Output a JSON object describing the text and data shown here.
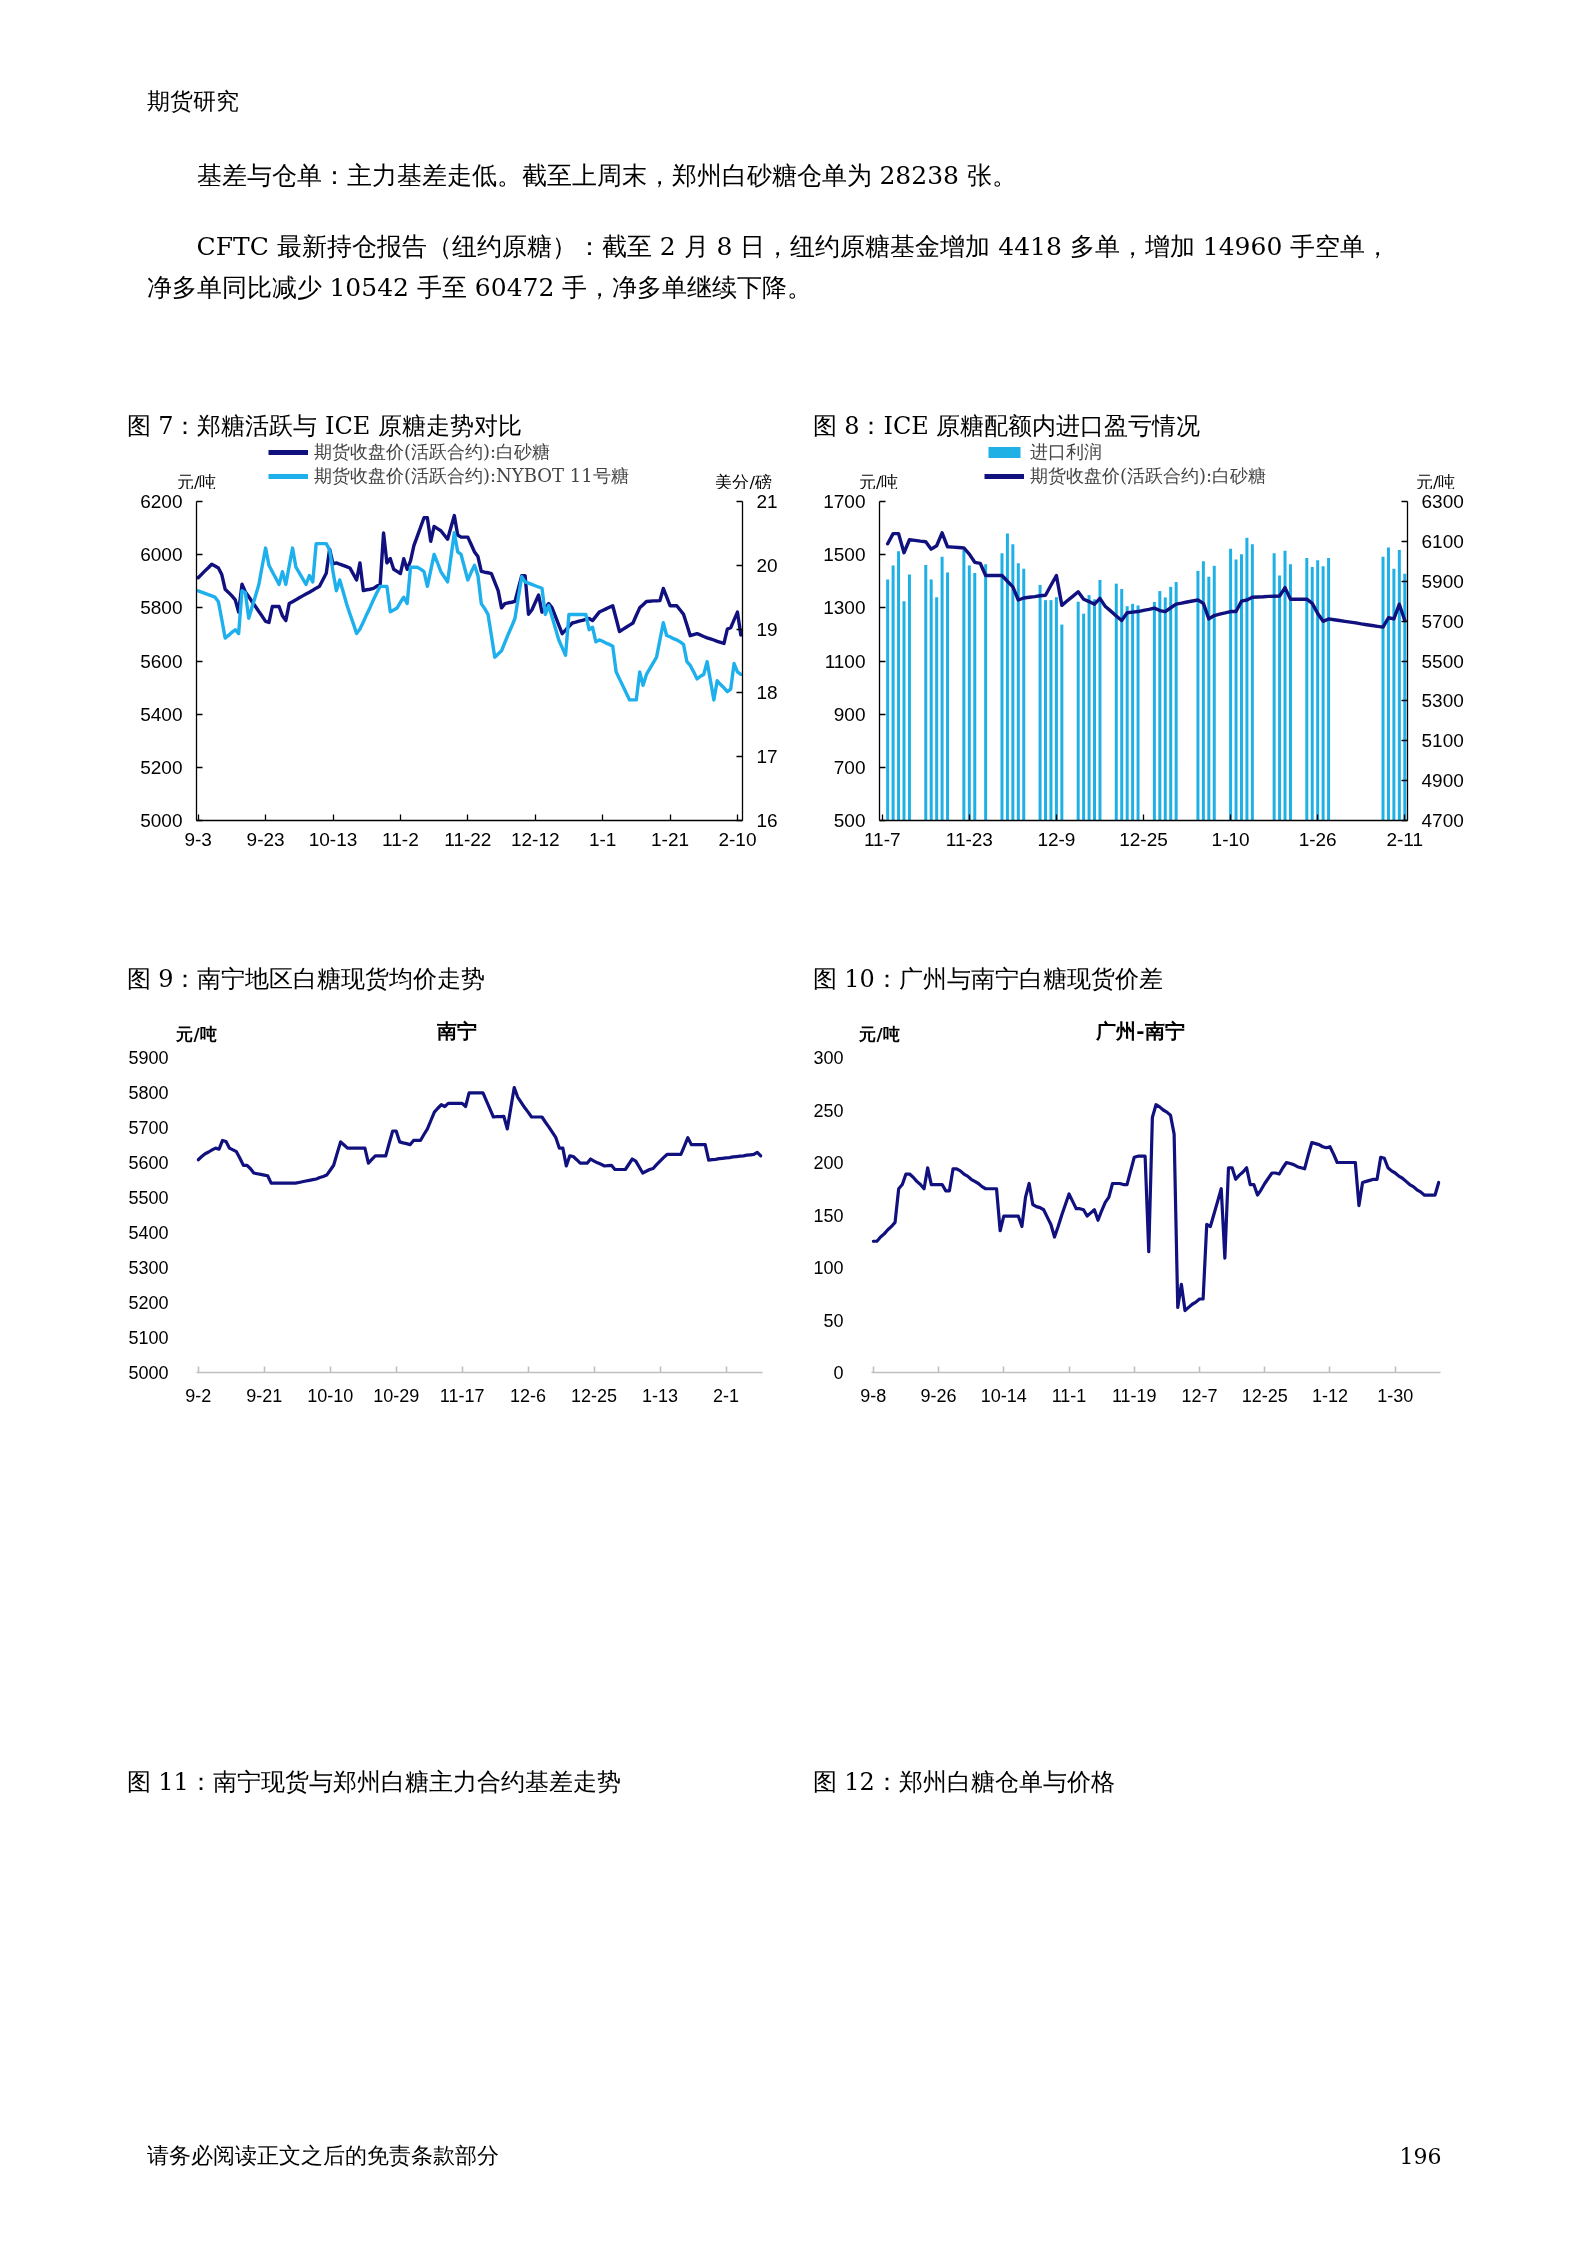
{
  "chart_data": [
    {
      "type": "other",
      "title": "期货研究",
      "annotations": [
        "基差与仓单：主力基差走低。截至上周末，郑州白砂糖仓单为 28238 张。",
        "CFTC 最新持仓报告（纽约原糖）：截至 2 月 8 日，纽约原糖基金增加 4418 多单，增加 14960 手空单，净多单同比减少 10542 手至 60472 手，净多单继续下降。"
      ]
    },
    {
      "type": "line",
      "title": "图 7：郑糖活跃与 ICE 原糖走势对比",
      "ylabel": "元/吨",
      "y2label": "美分/磅",
      "legend": "top",
      "categories": [
        "9-3",
        null,
        null,
        null,
        null,
        null,
        null,
        null,
        null,
        null,
        null,
        null,
        null,
        null,
        null,
        null,
        null,
        null,
        null,
        null,
        "9-23",
        null,
        null,
        null,
        null,
        null,
        null,
        null,
        null,
        null,
        null,
        null,
        null,
        null,
        null,
        null,
        null,
        null,
        null,
        null,
        "10-13",
        null,
        null,
        null,
        null,
        null,
        null,
        null,
        null,
        null,
        null,
        null,
        null,
        null,
        null,
        null,
        null,
        null,
        null,
        null,
        "11-2",
        null,
        null,
        null,
        null,
        null,
        null,
        null,
        null,
        null,
        null,
        null,
        null,
        null,
        null,
        null,
        null,
        null,
        null,
        null,
        "11-22",
        null,
        null,
        null,
        null,
        null,
        null,
        null,
        null,
        null,
        null,
        null,
        null,
        null,
        null,
        null,
        null,
        null,
        null,
        null,
        "12-12",
        null,
        null,
        null,
        null,
        null,
        null,
        null,
        null,
        null,
        null,
        null,
        null,
        null,
        null,
        null,
        null,
        null,
        null,
        null,
        "1-1",
        null,
        null,
        null,
        null,
        null,
        null,
        null,
        null,
        null,
        null,
        null,
        null,
        null,
        null,
        null,
        null,
        null,
        null,
        null,
        "1-21",
        null,
        null,
        null,
        null,
        null,
        null,
        null,
        null,
        null,
        null,
        null,
        null,
        null,
        null,
        null,
        null,
        null,
        null,
        null,
        "2-10",
        null
      ],
      "ylim": [
        5000,
        6200
      ],
      "yticks": [
        5000,
        5200,
        5400,
        5600,
        5800,
        6000,
        6200
      ],
      "y2lim": [
        16,
        21
      ],
      "y2ticks": [
        16,
        17,
        18,
        19,
        20,
        21
      ],
      "series": [
        {
          "name": "期货收盘价(活跃合约):白砂糖",
          "color": "#10107e",
          "values": [
            5913,
            5926,
            5939,
            5951,
            5964,
            5957,
            5950,
            5925,
            5870,
            5858,
            5845,
            5830,
            5784,
            5889,
            5860,
            5842,
            5823,
            5805,
            5786,
            5768,
            5749,
            5745,
            5805,
            5805,
            5805,
            5770,
            5752,
            5816,
            5823,
            5830,
            5838,
            5845,
            5852,
            5859,
            5866,
            5874,
            5881,
            5906,
            5930,
            6021,
            5965,
            5969,
            5964,
            5960,
            5955,
            5950,
            5928,
            5905,
            5969,
            5865,
            5868,
            5870,
            5873,
            5881,
            5889,
            6082,
            5969,
            5985,
            5945,
            5937,
            5929,
            5985,
            5945,
            5977,
            6034,
            6069,
            6104,
            6139,
            6139,
            6050,
            6106,
            6098,
            6090,
            6074,
            6058,
            6103,
            6147,
            6074,
            6066,
            6066,
            6066,
            6038,
            6010,
            5993,
            5937,
            5934,
            5932,
            5929,
            5897,
            5865,
            5800,
            5816,
            5819,
            5821,
            5824,
            5873,
            5921,
            5921,
            5776,
            5792,
            5820,
            5848,
            5784,
            5800,
            5816,
            5800,
            5768,
            5735,
            5703,
            5716,
            5730,
            5743,
            5746,
            5750,
            5753,
            5757,
            5760,
            5752,
            5768,
            5784,
            5790,
            5796,
            5802,
            5808,
            5760,
            5711,
            5719,
            5727,
            5735,
            5743,
            5772,
            5800,
            5812,
            5824,
            5825,
            5826,
            5826,
            5827,
            5873,
            5841,
            5808,
            5808,
            5808,
            5792,
            5776,
            5736,
            5695,
            5699,
            5703,
            5698,
            5692,
            5687,
            5683,
            5679,
            5674,
            5670,
            5666,
            5720,
            5725,
            5755,
            5784,
            5698
          ]
        },
        {
          "name": "期货收盘价(活跃合约):NYBOT 11号糖",
          "color": "#1eb0ec",
          "axis": "y2",
          "values": [
            19.6,
            19.58,
            19.56,
            19.54,
            19.52,
            19.5,
            19.43,
            19.15,
            18.86,
            18.9,
            18.95,
            18.99,
            18.93,
            19.6,
            19.57,
            19.17,
            19.35,
            19.52,
            19.7,
            19.99,
            20.27,
            20.0,
            19.9,
            19.8,
            19.7,
            19.9,
            19.7,
            19.99,
            20.27,
            19.97,
            19.88,
            19.79,
            19.7,
            19.84,
            19.74,
            20.34,
            20.34,
            20.34,
            20.34,
            20.24,
            19.9,
            19.6,
            19.77,
            19.59,
            19.4,
            19.24,
            19.09,
            18.93,
            19.0,
            19.11,
            19.23,
            19.34,
            19.46,
            19.57,
            19.67,
            19.67,
            19.67,
            19.27,
            19.3,
            19.33,
            19.42,
            19.5,
            19.4,
            19.97,
            19.97,
            19.97,
            19.94,
            19.9,
            19.67,
            19.92,
            20.17,
            20.04,
            19.9,
            19.82,
            19.74,
            20.13,
            20.51,
            20.21,
            20.17,
            19.97,
            19.77,
            19.89,
            20.0,
            19.84,
            19.4,
            19.32,
            19.23,
            18.9,
            18.56,
            18.61,
            18.66,
            18.79,
            18.92,
            19.04,
            19.17,
            19.5,
            19.82,
            19.74,
            19.72,
            19.7,
            19.68,
            19.66,
            19.64,
            19.23,
            19.37,
            19.19,
            19.01,
            18.83,
            18.71,
            18.59,
            19.23,
            19.23,
            19.23,
            19.23,
            19.23,
            19.23,
            18.99,
            19.03,
            18.8,
            18.83,
            18.81,
            18.78,
            18.76,
            18.73,
            18.33,
            18.22,
            18.11,
            18.0,
            17.89,
            17.89,
            17.89,
            18.33,
            18.12,
            18.29,
            18.38,
            18.47,
            18.56,
            18.83,
            19.1,
            18.9,
            18.88,
            18.85,
            18.83,
            18.8,
            18.76,
            18.49,
            18.43,
            18.33,
            18.22,
            18.26,
            18.29,
            18.49,
            18.19,
            17.89,
            18.19,
            18.13,
            18.08,
            18.02,
            18.06,
            18.46,
            18.33,
            18.29
          ]
        }
      ]
    },
    {
      "type": "bar",
      "title": "图 8：ICE 原糖配额内进口盈亏情况",
      "ylabel": "元/吨",
      "y2label": "元/吨",
      "legend": "top",
      "categories": [
        "11-7",
        null,
        null,
        null,
        null,
        null,
        null,
        null,
        null,
        null,
        null,
        null,
        null,
        null,
        null,
        null,
        "11-23",
        null,
        null,
        null,
        null,
        null,
        null,
        null,
        null,
        null,
        null,
        null,
        null,
        null,
        null,
        null,
        "12-9",
        null,
        null,
        null,
        null,
        null,
        null,
        null,
        null,
        null,
        null,
        null,
        null,
        null,
        null,
        null,
        "12-25",
        null,
        null,
        null,
        null,
        null,
        null,
        null,
        null,
        null,
        null,
        null,
        null,
        null,
        null,
        null,
        "1-10",
        null,
        null,
        null,
        null,
        null,
        null,
        null,
        null,
        null,
        null,
        null,
        null,
        null,
        null,
        null,
        "1-26",
        null,
        null,
        null,
        null,
        null,
        null,
        null,
        null,
        null,
        null,
        null,
        null,
        null,
        null,
        null,
        "2-11"
      ],
      "ylim": [
        500,
        1700
      ],
      "yticks": [
        500,
        700,
        900,
        1100,
        1300,
        1500,
        1700
      ],
      "y2lim": [
        4700,
        6300
      ],
      "y2ticks": [
        4700,
        4900,
        5100,
        5300,
        5500,
        5700,
        5900,
        6100,
        6300
      ],
      "series": [
        {
          "name": "进口利润",
          "color": "#1fb0e6",
          "values": [
            null,
            1407,
            1459,
            1513,
            1325,
            1425,
            null,
            null,
            1461,
            1407,
            1340,
            1492,
            1433,
            null,
            null,
            1518,
            1459,
            1431,
            null,
            1464,
            null,
            null,
            1505,
            1580,
            1539,
            1468,
            1447,
            null,
            null,
            1386,
            1329,
            1329,
            1340,
            1237,
            null,
            null,
            1323,
            1278,
            1348,
            1332,
            1405,
            null,
            null,
            1391,
            1371,
            1306,
            1315,
            1309,
            null,
            null,
            1322,
            1363,
            1339,
            1379,
            1397,
            null,
            null,
            null,
            1439,
            1475,
            1417,
            1458,
            null,
            null,
            1522,
            1482,
            1502,
            1564,
            1539,
            null,
            null,
            null,
            1505,
            1422,
            1515,
            1464,
            null,
            null,
            1487,
            1454,
            1479,
            1456,
            1487,
            null,
            null,
            null,
            null,
            null,
            null,
            null,
            null,
            null,
            1492,
            1527,
            1447,
            1518,
            1428
          ]
        },
        {
          "name": "期货收盘价(活跃合约):白砂糖",
          "type": "line",
          "axis": "y2",
          "color": "#10107e",
          "values": [
            null,
            6088,
            6139,
            6139,
            6043,
            6108,
            6105,
            6101,
            6098,
            6061,
            6078,
            6143,
            6073,
            6071,
            6069,
            6067,
            6036,
            5995,
            5990,
            5929,
            5929,
            5929,
            5929,
            5900,
            5872,
            5806,
            5816,
            5820,
            5823,
            5827,
            5830,
            5880,
            5929,
            5779,
            5802,
            5824,
            5847,
            5810,
            5798,
            5785,
            5814,
            5773,
            5750,
            5726,
            5703,
            5742,
            5745,
            5748,
            5754,
            5759,
            5765,
            5753,
            5748,
            5767,
            5785,
            5790,
            5796,
            5801,
            5806,
            5789,
            5711,
            5728,
            5735,
            5741,
            5748,
            5748,
            5800,
            5806,
            5820,
            5821,
            5822,
            5824,
            5825,
            5826,
            5868,
            5810,
            5810,
            5810,
            5810,
            5789,
            5738,
            5699,
            5711,
            5707,
            5703,
            5699,
            5695,
            5691,
            5686,
            5682,
            5678,
            5674,
            5670,
            5717,
            5711,
            5785,
            5703
          ]
        }
      ]
    },
    {
      "type": "line",
      "title": "图 9：南宁地区白糖现货均价走势",
      "subtitle": "南宁",
      "ylabel": "元/吨",
      "color": "#10107e",
      "categories": [
        "9-2",
        null,
        null,
        null,
        null,
        null,
        null,
        null,
        null,
        null,
        null,
        null,
        null,
        null,
        null,
        null,
        null,
        null,
        null,
        "9-21",
        null,
        null,
        null,
        null,
        null,
        null,
        null,
        null,
        null,
        null,
        null,
        null,
        null,
        null,
        null,
        null,
        null,
        null,
        "10-10",
        null,
        null,
        null,
        null,
        null,
        null,
        null,
        null,
        null,
        null,
        null,
        null,
        null,
        null,
        null,
        null,
        null,
        null,
        "10-29",
        null,
        null,
        null,
        null,
        null,
        null,
        null,
        null,
        null,
        null,
        null,
        null,
        null,
        null,
        null,
        null,
        null,
        null,
        "11-17",
        null,
        null,
        null,
        null,
        null,
        null,
        null,
        null,
        null,
        null,
        null,
        null,
        null,
        null,
        null,
        null,
        null,
        null,
        "12-6",
        null,
        null,
        null,
        null,
        null,
        null,
        null,
        null,
        null,
        null,
        null,
        null,
        null,
        null,
        null,
        null,
        null,
        null,
        "12-25",
        null,
        null,
        null,
        null,
        null,
        null,
        null,
        null,
        null,
        null,
        null,
        null,
        null,
        null,
        null,
        null,
        null,
        null,
        "1-13",
        null,
        null,
        null,
        null,
        null,
        null,
        null,
        null,
        null,
        null,
        null,
        null,
        null,
        null,
        null,
        null,
        null,
        null,
        "2-1",
        null,
        null,
        null,
        null,
        null,
        null,
        null,
        null,
        null,
        null
      ],
      "ylim": [
        5000,
        5900
      ],
      "yticks": [
        5000,
        5100,
        5200,
        5300,
        5400,
        5500,
        5600,
        5700,
        5800,
        5900
      ],
      "values": [
        5608,
        5617,
        5625,
        5630,
        5636,
        5641,
        5638,
        5663,
        5660,
        5641,
        5636,
        5631,
        5612,
        5592,
        5592,
        5583,
        5570,
        5568,
        5566,
        5564,
        5562,
        5541,
        5541,
        5541,
        5541,
        5541,
        5541,
        5541,
        5541,
        5543,
        5545,
        5547,
        5549,
        5551,
        5553,
        5557,
        5560,
        5564,
        5578,
        5592,
        5626,
        5659,
        5650,
        5641,
        5641,
        5641,
        5641,
        5641,
        5641,
        5598,
        5609,
        5619,
        5619,
        5619,
        5619,
        5655,
        5690,
        5690,
        5659,
        5656,
        5654,
        5651,
        5663,
        5663,
        5663,
        5680,
        5696,
        5720,
        5744,
        5755,
        5765,
        5760,
        5769,
        5769,
        5769,
        5769,
        5769,
        5760,
        5799,
        5799,
        5799,
        5799,
        5799,
        5776,
        5753,
        5730,
        5731,
        5731,
        5732,
        5696,
        5755,
        5814,
        5787,
        5772,
        5757,
        5744,
        5730,
        5730,
        5730,
        5730,
        5715,
        5701,
        5686,
        5671,
        5641,
        5641,
        5590,
        5619,
        5617,
        5608,
        5598,
        5598,
        5598,
        5610,
        5604,
        5599,
        5595,
        5590,
        5591,
        5592,
        5580,
        5580,
        5580,
        5580,
        5595,
        5610,
        5604,
        5587,
        5570,
        5575,
        5580,
        5583,
        5594,
        5604,
        5614,
        5623,
        5623,
        5623,
        5623,
        5623,
        5647,
        5671,
        5651,
        5651,
        5651,
        5651,
        5651,
        5607,
        5608,
        5609,
        5611,
        5612,
        5613,
        5614,
        5616,
        5617,
        5618,
        5619,
        5621,
        5622,
        5623,
        5629,
        5619
      ]
    },
    {
      "type": "line",
      "title": "图 10：广州与南宁白糖现货价差",
      "subtitle": "广州-南宁",
      "ylabel": "元/吨",
      "color": "#10107e",
      "categories": [
        "9-8",
        null,
        null,
        null,
        null,
        null,
        null,
        null,
        null,
        null,
        null,
        null,
        null,
        null,
        null,
        null,
        null,
        null,
        "9-26",
        null,
        null,
        null,
        null,
        null,
        null,
        null,
        null,
        null,
        null,
        null,
        null,
        null,
        null,
        null,
        null,
        null,
        "10-14",
        null,
        null,
        null,
        null,
        null,
        null,
        null,
        null,
        null,
        null,
        null,
        null,
        null,
        null,
        null,
        null,
        null,
        "11-1",
        null,
        null,
        null,
        null,
        null,
        null,
        null,
        null,
        null,
        null,
        null,
        null,
        null,
        null,
        null,
        null,
        null,
        "11-19",
        null,
        null,
        null,
        null,
        null,
        null,
        null,
        null,
        null,
        null,
        null,
        null,
        null,
        null,
        null,
        null,
        null,
        "12-7",
        null,
        null,
        null,
        null,
        null,
        null,
        null,
        null,
        null,
        null,
        null,
        null,
        null,
        null,
        null,
        null,
        null,
        "12-25",
        null,
        null,
        null,
        null,
        null,
        null,
        null,
        null,
        null,
        null,
        null,
        null,
        null,
        null,
        null,
        null,
        null,
        "1-12",
        null,
        null,
        null,
        null,
        null,
        null,
        null,
        null,
        null,
        null,
        null,
        null,
        null,
        null,
        null,
        null,
        null,
        "1-30",
        null,
        null,
        null,
        null,
        null,
        null,
        null,
        null,
        null,
        null,
        null,
        null
      ],
      "ylim": [
        0,
        300
      ],
      "yticks": [
        0,
        50,
        100,
        150,
        200,
        250,
        300
      ],
      "values": [
        125,
        125,
        129,
        132,
        136,
        139,
        143,
        175,
        179,
        189,
        189,
        186,
        182,
        179,
        175,
        195,
        179,
        179,
        179,
        179,
        173,
        173,
        194,
        194,
        192,
        189,
        187,
        184,
        182,
        180,
        177,
        175,
        175,
        175,
        175,
        135,
        149,
        149,
        149,
        149,
        149,
        139,
        167,
        180,
        160,
        158,
        157,
        155,
        148,
        141,
        129,
        139,
        150,
        160,
        170,
        163,
        156,
        156,
        155,
        149,
        152,
        155,
        145,
        154,
        162,
        167,
        180,
        180,
        180,
        179,
        179,
        192,
        205,
        206,
        206,
        206,
        115,
        243,
        255,
        253,
        250,
        248,
        245,
        227,
        62,
        84,
        59,
        62,
        65,
        67,
        70,
        70,
        141,
        139,
        151,
        163,
        175,
        109,
        195,
        195,
        184,
        188,
        191,
        195,
        179,
        179,
        169,
        174,
        180,
        185,
        190,
        190,
        189,
        195,
        200,
        199,
        198,
        196,
        195,
        194,
        207,
        219,
        218,
        217,
        215,
        214,
        215,
        208,
        200,
        200,
        200,
        200,
        200,
        200,
        159,
        181,
        182,
        183,
        184,
        184,
        205,
        204,
        195,
        192,
        190,
        187,
        185,
        182,
        179,
        177,
        174,
        172,
        169,
        169,
        169,
        169,
        181
      ]
    },
    {
      "type": "other",
      "title": "图 11：南宁现货与郑州白糖主力合约基差走势"
    },
    {
      "type": "other",
      "title": "图 12：郑州白糖仓单与价格"
    },
    {
      "type": "other",
      "annotations": [
        "请务必阅读正文之后的免责条款部分",
        "196"
      ]
    }
  ]
}
